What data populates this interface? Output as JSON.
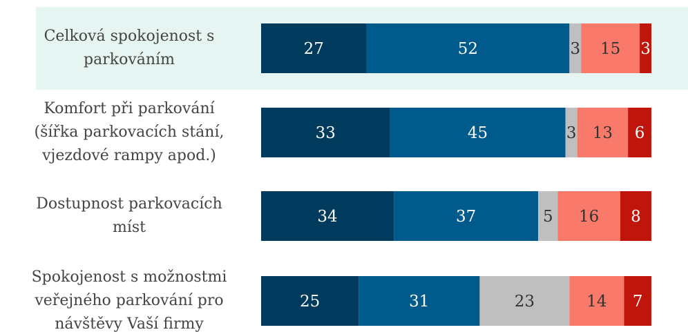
{
  "chart_data": {
    "type": "stacked-barh",
    "categories": [
      "Celková spokojenost s\nparkováním",
      "Komfort při parkování\n(šířka parkovacích stání,\nvjezdové rampy apod.)",
      "Dostupnost parkovacích\nmíst",
      "Spokojenost s možnostmi\nveřejného parkování pro\nnávštěvy Vaší firmy"
    ],
    "series": [
      {
        "color": "#003a5c",
        "values": [
          27,
          33,
          34,
          25
        ]
      },
      {
        "color": "#005a8c",
        "values": [
          52,
          45,
          37,
          31
        ]
      },
      {
        "color": "#bfbfbf",
        "values": [
          3,
          3,
          5,
          23
        ]
      },
      {
        "color": "#f97a6a",
        "values": [
          15,
          13,
          16,
          14
        ]
      },
      {
        "color": "#c0150a",
        "values": [
          3,
          6,
          8,
          7
        ]
      }
    ],
    "label_colors": [
      "#ffffff",
      "#ffffff",
      "#333333",
      "#333333",
      "#ffffff"
    ],
    "xlim": [
      0,
      100
    ],
    "highlight": 0
  }
}
